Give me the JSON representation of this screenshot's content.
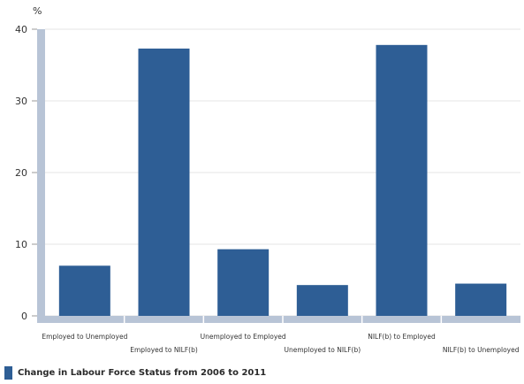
{
  "chart_data": {
    "type": "bar",
    "y_unit_label": "%",
    "categories": [
      "Employed to Unemployed",
      "Employed to NILF(b)",
      "Unemployed to Employed",
      "Unemployed to NILF(b)",
      "NILF(b) to Employed",
      "NILF(b) to Unemployed"
    ],
    "series": [
      {
        "name": "Change in Labour Force Status from 2006 to 2011",
        "values": [
          7.0,
          37.3,
          9.3,
          4.3,
          37.8,
          4.5
        ],
        "color": "#2e5e95"
      }
    ],
    "ylim": [
      0,
      40
    ],
    "yticks": [
      0,
      10,
      20,
      30,
      40
    ],
    "grid": true,
    "legend_position": "bottom-left"
  },
  "colors": {
    "axis": "#b8c4d6",
    "grid": "#e6e6e6"
  }
}
